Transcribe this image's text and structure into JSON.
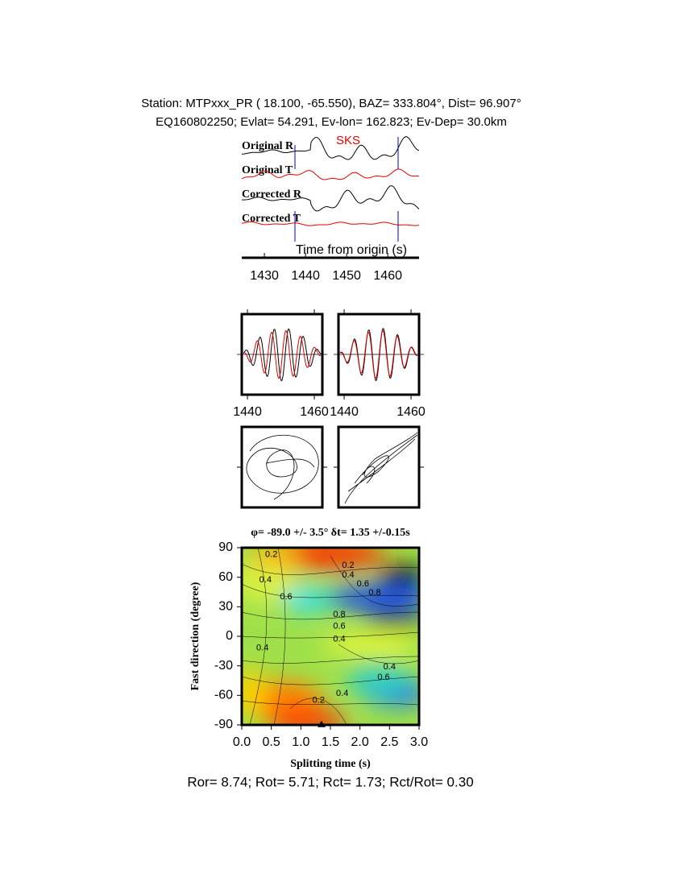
{
  "chart_data": [
    {
      "type": "waveform",
      "title": "Station: MTPxxx_PR (  18.100,  -65.550), BAZ=  333.804°, Dist=   96.907°",
      "subtitle": "EQ160802250; Evlat=  54.291, Ev-lon= 162.823; Ev-Dep= 30.0km",
      "traces": [
        {
          "name": "Original R",
          "color": "#000000"
        },
        {
          "name": "Original T",
          "color": "#e00000"
        },
        {
          "name": "Corrected R",
          "color": "#000000"
        },
        {
          "name": "Corrected T",
          "color": "#e00000"
        }
      ],
      "annotation": "SKS",
      "xlabel": "Time from origin (s)",
      "xlim": [
        1424.5,
        1467.6
      ],
      "xticks": [
        1430,
        1440,
        1450,
        1460
      ]
    },
    {
      "type": "waveform-pair",
      "xlim": [
        1438.3,
        1462.4
      ],
      "xticks": [
        1440,
        1460
      ]
    },
    {
      "type": "contour",
      "title": "φ= -89.0 +/- 3.5° δt= 1.35 +/-0.15s",
      "xlabel": "Splitting time (s)",
      "ylabel": "Fast direction (degree)",
      "xlim": [
        0,
        3
      ],
      "ylim": [
        -90,
        90
      ],
      "xticks": [
        {
          "value": 0,
          "label": "0.0"
        },
        {
          "value": 0.5,
          "label": "0.5"
        },
        {
          "value": 1,
          "label": "1.0"
        },
        {
          "value": 1.5,
          "label": "1.5"
        },
        {
          "value": 2,
          "label": "2.0"
        },
        {
          "value": 2.5,
          "label": "2.5"
        },
        {
          "value": 3,
          "label": "3.0"
        }
      ],
      "yticks": [
        -90,
        -60,
        -30,
        0,
        30,
        60,
        90
      ],
      "best": {
        "x": 1.35,
        "y": -89
      },
      "contour_labels": [
        {
          "x": 0.5,
          "y": 83,
          "label": "0.2"
        },
        {
          "x": 1.8,
          "y": 72,
          "label": "0.2"
        },
        {
          "x": 1.8,
          "y": 62,
          "label": "0.4"
        },
        {
          "x": 2.05,
          "y": 53,
          "label": "0.6"
        },
        {
          "x": 2.25,
          "y": 44,
          "label": "0.8"
        },
        {
          "x": 0.4,
          "y": 57,
          "label": "0.4"
        },
        {
          "x": 0.75,
          "y": 40,
          "label": "0.6"
        },
        {
          "x": 1.65,
          "y": 22,
          "label": "0.8"
        },
        {
          "x": 1.65,
          "y": 10,
          "label": "0.6"
        },
        {
          "x": 1.65,
          "y": -3,
          "label": "0.4"
        },
        {
          "x": 0.35,
          "y": -12,
          "label": "0.4"
        },
        {
          "x": 2.5,
          "y": -31,
          "label": "0.4"
        },
        {
          "x": 2.4,
          "y": -42,
          "label": "0.6"
        },
        {
          "x": 1.7,
          "y": -58,
          "label": "0.4"
        },
        {
          "x": 1.3,
          "y": -65,
          "label": "0.2"
        }
      ],
      "footer": "Ror= 8.74; Rot= 5.71; Rct= 1.73; Rct/Rot= 0.30"
    }
  ]
}
